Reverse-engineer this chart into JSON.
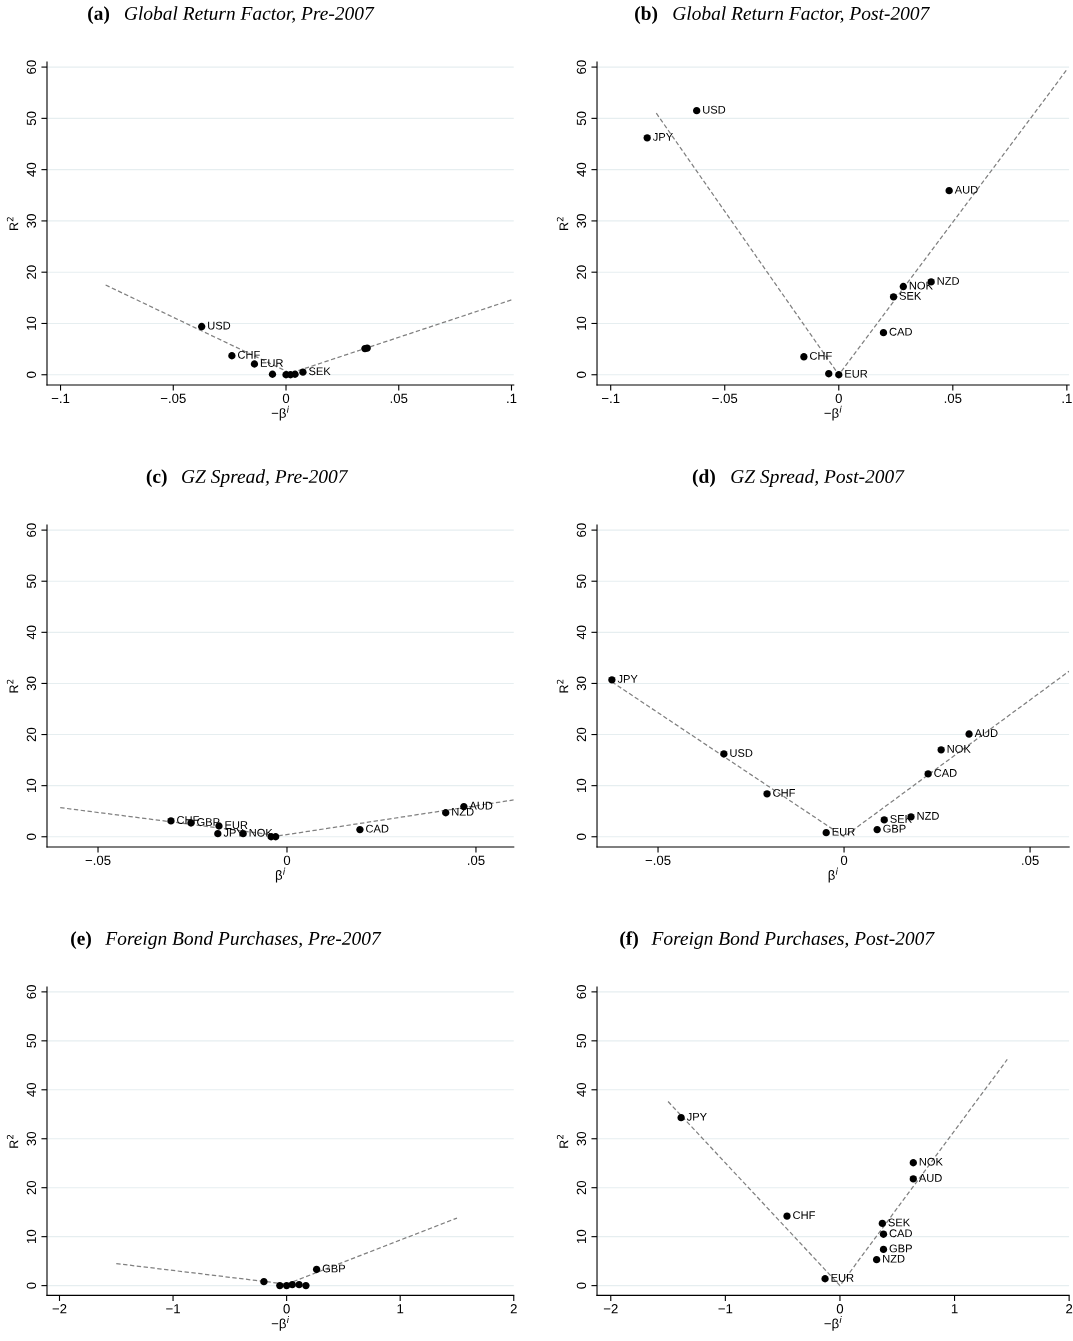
{
  "chart_data": [
    {
      "type": "scatter",
      "title": "(a) Global Return Factor, Pre-2007",
      "xlabel": "−β$^{i}$",
      "ylabel": "R$^{2}$",
      "xlim": [
        -0.106,
        0.101
      ],
      "ylim": [
        -2,
        61
      ],
      "xticks": [
        {
          "value": -0.1,
          "label": "−.1"
        },
        {
          "value": -0.05,
          "label": "−.05"
        },
        0,
        {
          "value": 0.05,
          "label": ".05"
        },
        {
          "value": 0.1,
          "label": ".1"
        }
      ],
      "yticks": [
        0,
        10,
        20,
        30,
        40,
        50,
        60
      ],
      "grid": "y",
      "marker": "circle",
      "series": [
        {
          "type": "scatter",
          "color": "#000000",
          "x": [
            -0.0374,
            -0.024,
            -0.014,
            -0.006,
            0.0,
            0.002,
            0.004,
            0.0075,
            0.035,
            0.036
          ],
          "values": [
            9.4,
            3.7,
            2.1,
            0.1,
            0.0,
            0.0,
            0.1,
            0.5,
            5.1,
            5.2
          ]
        },
        {
          "type": "line",
          "color": "#808080",
          "line_style": "dashed",
          "marker": "none",
          "x": [
            -0.08,
            0.002,
            0.1
          ],
          "values": [
            17.5,
            0.3,
            14.6
          ]
        }
      ],
      "annotations": [
        {
          "text": "USD",
          "x": -0.0374,
          "y": 9.4
        },
        {
          "text": "CHF",
          "x": -0.024,
          "y": 3.7
        },
        {
          "text": "EUR",
          "x": -0.014,
          "y": 2.1
        },
        {
          "text": "SEK",
          "x": 0.0075,
          "y": 0.5
        }
      ]
    },
    {
      "type": "scatter",
      "title": "(b) Global Return Factor, Post-2007",
      "xlabel": "−β$^{i}$",
      "ylabel": "R$^{2}$",
      "xlim": [
        -0.106,
        0.101
      ],
      "ylim": [
        -2,
        61
      ],
      "xticks": [
        {
          "value": -0.1,
          "label": "−.1"
        },
        {
          "value": -0.05,
          "label": "−.05"
        },
        0,
        {
          "value": 0.05,
          "label": ".05"
        },
        {
          "value": 0.1,
          "label": ".1"
        }
      ],
      "yticks": [
        0,
        10,
        20,
        30,
        40,
        50,
        60
      ],
      "grid": "y",
      "marker": "circle",
      "series": [
        {
          "type": "scatter",
          "color": "#000000",
          "x": [
            -0.0623,
            -0.084,
            0.0484,
            0.0405,
            0.0283,
            0.024,
            0.0196,
            -0.0153,
            -0.0044,
            0.0
          ],
          "values": [
            51.5,
            46.2,
            35.9,
            18.1,
            17.2,
            15.2,
            8.2,
            3.5,
            0.2,
            0.0
          ]
        },
        {
          "type": "line",
          "color": "#808080",
          "line_style": "dashed",
          "marker": "none",
          "x": [
            -0.08,
            0.0,
            0.1
          ],
          "values": [
            51,
            0,
            59.5
          ]
        }
      ],
      "annotations": [
        {
          "text": "USD",
          "x": -0.0623,
          "y": 51.5
        },
        {
          "text": "JPY",
          "x": -0.084,
          "y": 46.2
        },
        {
          "text": "AUD",
          "x": 0.0484,
          "y": 35.9
        },
        {
          "text": "NZD",
          "x": 0.0405,
          "y": 18.1
        },
        {
          "text": "NOK",
          "x": 0.0283,
          "y": 17.2
        },
        {
          "text": "SEK",
          "x": 0.024,
          "y": 15.2
        },
        {
          "text": "CAD",
          "x": 0.0196,
          "y": 8.2
        },
        {
          "text": "CHF",
          "x": -0.0153,
          "y": 3.5
        },
        {
          "text": "EUR",
          "x": 0.0,
          "y": 0.0
        }
      ]
    },
    {
      "type": "scatter",
      "title": "(c) GZ Spread, Pre-2007",
      "xlabel": "β$^{i}$",
      "ylabel": "R$^{2}$",
      "xlim": [
        -0.0635,
        0.06
      ],
      "ylim": [
        -2,
        61
      ],
      "xticks": [
        {
          "value": -0.05,
          "label": "−.05"
        },
        0,
        {
          "value": 0.05,
          "label": ".05"
        }
      ],
      "yticks": [
        0,
        10,
        20,
        30,
        40,
        50,
        60
      ],
      "grid": "y",
      "marker": "circle",
      "series": [
        {
          "type": "scatter",
          "color": "#000000",
          "x": [
            -0.0307,
            -0.0254,
            -0.018,
            -0.0183,
            -0.0116,
            -0.0042,
            -0.003,
            0.0193,
            0.042,
            0.0468
          ],
          "values": [
            3.1,
            2.7,
            2.1,
            0.6,
            0.6,
            0.0,
            0.0,
            1.4,
            4.7,
            5.9
          ]
        },
        {
          "type": "line",
          "color": "#808080",
          "line_style": "dashed",
          "marker": "none",
          "x": [
            -0.06,
            -0.002,
            0.06
          ],
          "values": [
            5.7,
            0.2,
            7.2
          ]
        }
      ],
      "annotations": [
        {
          "text": "CHF",
          "x": -0.0307,
          "y": 3.1
        },
        {
          "text": "GBP",
          "x": -0.0254,
          "y": 2.7
        },
        {
          "text": "EUR",
          "x": -0.018,
          "y": 2.1
        },
        {
          "text": "JPY",
          "x": -0.0183,
          "y": 0.6
        },
        {
          "text": "NOK",
          "x": -0.0116,
          "y": 0.6
        },
        {
          "text": "CAD",
          "x": 0.0193,
          "y": 1.4
        },
        {
          "text": "NZD",
          "x": 0.042,
          "y": 4.7
        },
        {
          "text": "AUD",
          "x": 0.0468,
          "y": 5.9
        }
      ]
    },
    {
      "type": "scatter",
      "title": "(d) GZ Spread, Post-2007",
      "xlabel": "β$^{i}$",
      "ylabel": "R$^{2}$",
      "xlim": [
        -0.0664,
        0.0605
      ],
      "ylim": [
        -2,
        61
      ],
      "xticks": [
        {
          "value": -0.05,
          "label": "−.05"
        },
        0,
        {
          "value": 0.05,
          "label": ".05"
        }
      ],
      "yticks": [
        0,
        10,
        20,
        30,
        40,
        50,
        60
      ],
      "grid": "y",
      "marker": "circle",
      "series": [
        {
          "type": "scatter",
          "color": "#000000",
          "x": [
            -0.0624,
            -0.0323,
            -0.0207,
            -0.0048,
            0.0089,
            0.0108,
            0.018,
            0.0226,
            0.0261,
            0.0336
          ],
          "values": [
            30.7,
            16.2,
            8.4,
            0.8,
            1.4,
            3.3,
            3.9,
            12.3,
            17.0,
            20.1
          ]
        },
        {
          "type": "line",
          "color": "#808080",
          "line_style": "dashed",
          "marker": "none",
          "x": [
            -0.0624,
            0.0,
            0.0605
          ],
          "values": [
            30.3,
            0,
            32.4
          ]
        }
      ],
      "annotations": [
        {
          "text": "JPY",
          "x": -0.0624,
          "y": 30.7
        },
        {
          "text": "USD",
          "x": -0.0323,
          "y": 16.2
        },
        {
          "text": "CHF",
          "x": -0.0207,
          "y": 8.4
        },
        {
          "text": "EUR",
          "x": -0.0048,
          "y": 0.8
        },
        {
          "text": "GBP",
          "x": 0.0089,
          "y": 1.4
        },
        {
          "text": "SEK",
          "x": 0.0108,
          "y": 3.3
        },
        {
          "text": "NZD",
          "x": 0.018,
          "y": 3.9
        },
        {
          "text": "CAD",
          "x": 0.0226,
          "y": 12.3
        },
        {
          "text": "NOK",
          "x": 0.0261,
          "y": 17.0
        },
        {
          "text": "AUD",
          "x": 0.0336,
          "y": 20.1
        }
      ]
    },
    {
      "type": "scatter",
      "title": "(e) Foreign Bond Purchases, Pre-2007",
      "xlabel": "−β$^{i}$",
      "ylabel": "R$^{2}$",
      "xlim": [
        -2.11,
        2.0
      ],
      "ylim": [
        -2,
        61
      ],
      "xticks": [
        {
          "value": -2,
          "label": "−2"
        },
        {
          "value": -1,
          "label": "−1"
        },
        0,
        1,
        2
      ],
      "yticks": [
        0,
        10,
        20,
        30,
        40,
        50,
        60
      ],
      "grid": "y",
      "marker": "circle",
      "series": [
        {
          "type": "scatter",
          "color": "#000000",
          "x": [
            0.264,
            -0.2,
            -0.06,
            0.0,
            0.05,
            0.11,
            0.17
          ],
          "values": [
            3.3,
            0.8,
            0.0,
            0.0,
            0.2,
            0.2,
            0.0
          ]
        },
        {
          "type": "line",
          "color": "#808080",
          "line_style": "dashed",
          "marker": "none",
          "x": [
            -1.5,
            0.0,
            1.5
          ],
          "values": [
            4.5,
            0.3,
            13.8
          ]
        }
      ],
      "annotations": [
        {
          "text": "GBP",
          "x": 0.264,
          "y": 3.3
        }
      ]
    },
    {
      "type": "scatter",
      "title": "(f) Foreign Bond Purchases, Post-2007",
      "xlabel": "−β$^{i}$",
      "ylabel": "R$^{2}$",
      "xlim": [
        -2.12,
        2.0
      ],
      "ylim": [
        -2,
        61
      ],
      "xticks": [
        {
          "value": -2,
          "label": "−2"
        },
        {
          "value": -1,
          "label": "−1"
        },
        0,
        1,
        2
      ],
      "yticks": [
        0,
        10,
        20,
        30,
        40,
        50,
        60
      ],
      "grid": "y",
      "marker": "circle",
      "series": [
        {
          "type": "scatter",
          "color": "#000000",
          "x": [
            -1.386,
            -0.462,
            -0.13,
            0.32,
            0.38,
            0.38,
            0.37,
            0.64,
            0.64
          ],
          "values": [
            34.3,
            14.2,
            1.4,
            5.3,
            7.4,
            10.5,
            12.7,
            21.8,
            25.1
          ]
        },
        {
          "type": "line",
          "color": "#808080",
          "line_style": "dashed",
          "marker": "none",
          "x": [
            -1.5,
            0.0,
            1.46
          ],
          "values": [
            37.6,
            0,
            46.2
          ]
        }
      ],
      "annotations": [
        {
          "text": "JPY",
          "x": -1.386,
          "y": 34.3
        },
        {
          "text": "CHF",
          "x": -0.462,
          "y": 14.2
        },
        {
          "text": "EUR",
          "x": -0.13,
          "y": 1.4
        },
        {
          "text": "NZD",
          "x": 0.32,
          "y": 5.3
        },
        {
          "text": "GBP",
          "x": 0.38,
          "y": 7.4
        },
        {
          "text": "CAD",
          "x": 0.38,
          "y": 10.5
        },
        {
          "text": "SEK",
          "x": 0.37,
          "y": 12.7
        },
        {
          "text": "AUD",
          "x": 0.64,
          "y": 21.8
        },
        {
          "text": "NOK",
          "x": 0.64,
          "y": 25.1
        }
      ]
    }
  ]
}
